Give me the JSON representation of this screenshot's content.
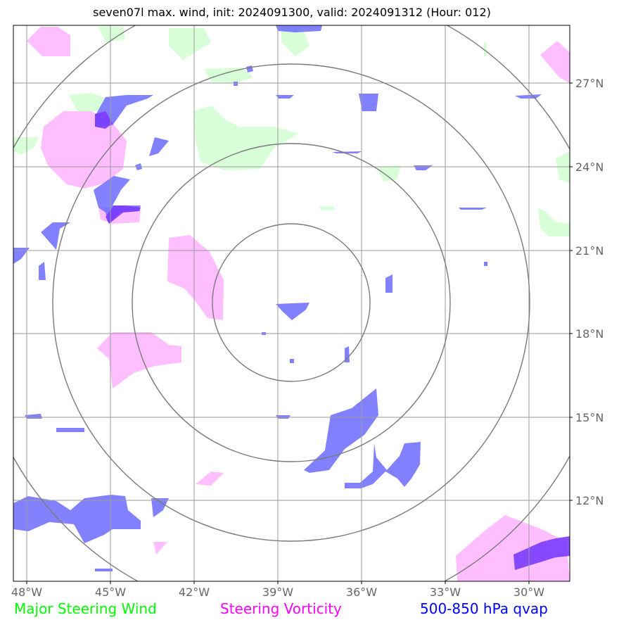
{
  "title": "seven07l max. wind, init: 2024091300, valid: 2024091312 (Hour: 012)",
  "lon_labels": [
    "48°W",
    "45°W",
    "42°W",
    "39°W",
    "36°W",
    "33°W",
    "30°W"
  ],
  "lat_labels": [
    "27°N",
    "24°N",
    "21°N",
    "18°N",
    "15°N",
    "12°N"
  ],
  "legend": {
    "wind": "Major Steering Wind",
    "vorticity": "Steering Vorticity",
    "qvap": "500-850 hPa qvap"
  },
  "colors": {
    "wind": "#00ff00",
    "vorticity": "#ff00ff",
    "qvap": "#0000ff",
    "wind_fill": "#ccffcc",
    "vort_fill": "#ffb3ff",
    "qvap_fill": "#6666ff"
  }
}
